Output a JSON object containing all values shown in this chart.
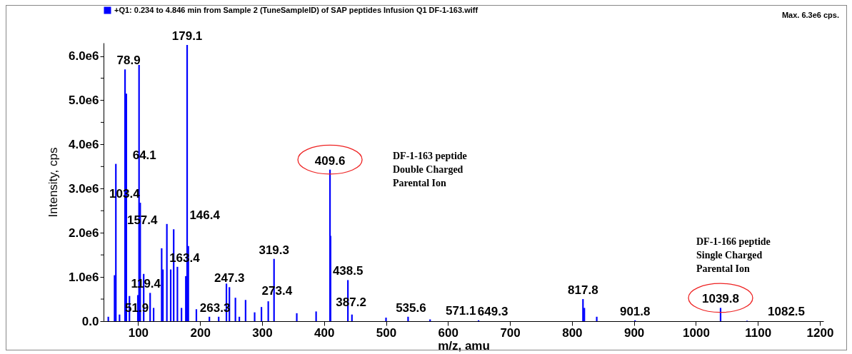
{
  "chart_data": {
    "type": "bar",
    "xlabel": "m/z, amu",
    "ylabel": "Intensity, cps",
    "x": [
      51.9,
      62,
      64.1,
      70,
      78.9,
      81,
      86,
      99.6,
      101.5,
      103.4,
      109,
      119.4,
      125,
      138,
      140,
      146.4,
      152.6,
      157.4,
      163.4,
      170,
      177,
      179.1,
      181,
      194,
      215,
      230,
      242.5,
      247.3,
      257,
      263.3,
      273.4,
      288,
      299,
      310,
      319.3,
      356,
      387.2,
      409.6,
      410.5,
      438.5,
      445,
      500,
      535.6,
      571.1,
      649.3,
      817.8,
      820,
      840,
      901.8,
      1039.8,
      1082.5
    ],
    "series": [
      {
        "name": "+Q1: 0.234 to 4.846 min from Sample 2 (TuneSampleID) of SAP peptides Infusion Q1 DF-1-163.wiff",
        "color": "#0000ff",
        "values": [
          100000,
          1040000,
          3560000,
          150000,
          5700000,
          5150000,
          570000,
          590000,
          5800000,
          2680000,
          1070000,
          640000,
          300000,
          1650000,
          1170000,
          2200000,
          1170000,
          2080000,
          1230000,
          300000,
          1020000,
          6250000,
          1700000,
          270000,
          100000,
          100000,
          850000,
          770000,
          530000,
          100000,
          480000,
          200000,
          320000,
          450000,
          1410000,
          180000,
          220000,
          3430000,
          1930000,
          930000,
          150000,
          80000,
          100000,
          40000,
          20000,
          500000,
          300000,
          100000,
          20000,
          300000,
          10000
        ]
      }
    ],
    "xlim": [
      50,
      1200
    ],
    "xticks": [
      100,
      200,
      300,
      400,
      500,
      600,
      700,
      800,
      900,
      1000,
      1100,
      1200
    ],
    "ylim": [
      0,
      6300000
    ],
    "yticks": [
      {
        "value": 0,
        "label": "0.0"
      },
      {
        "value": 500000,
        "label": null
      },
      {
        "value": 1000000,
        "label": "1.0e6"
      },
      {
        "value": 1500000,
        "label": null
      },
      {
        "value": 2000000,
        "label": "2.0e6"
      },
      {
        "value": 2500000,
        "label": null
      },
      {
        "value": 3000000,
        "label": "3.0e6"
      },
      {
        "value": 3500000,
        "label": null
      },
      {
        "value": 4000000,
        "label": "4.0e6"
      },
      {
        "value": 4500000,
        "label": null
      },
      {
        "value": 5000000,
        "label": "5.0e6"
      },
      {
        "value": 5500000,
        "label": null
      },
      {
        "value": 6000000,
        "label": "6.0e6"
      }
    ],
    "grid": false,
    "legend": "top left",
    "annotations": [
      {
        "text": "51.9",
        "x": 51.9,
        "y": 100000
      },
      {
        "text": "64.1",
        "x": 64.1,
        "y": 3560000
      },
      {
        "text": "78.9",
        "x": 78.9,
        "y": 5700000
      },
      {
        "text": "103.4",
        "x": 103.4,
        "y": 2680000
      },
      {
        "text": "119.4",
        "x": 119.4,
        "y": 640000
      },
      {
        "text": "146.4",
        "x": 146.4,
        "y": 2200000
      },
      {
        "text": "157.4",
        "x": 157.4,
        "y": 2080000
      },
      {
        "text": "163.4",
        "x": 163.4,
        "y": 1230000
      },
      {
        "text": "179.1",
        "x": 179.1,
        "y": 6250000
      },
      {
        "text": "247.3",
        "x": 247.3,
        "y": 770000
      },
      {
        "text": "263.3",
        "x": 263.3,
        "y": 100000
      },
      {
        "text": "273.4",
        "x": 273.4,
        "y": 480000
      },
      {
        "text": "319.3",
        "x": 319.3,
        "y": 1410000
      },
      {
        "text": "387.2",
        "x": 387.2,
        "y": 220000
      },
      {
        "text": "409.6",
        "x": 409.6,
        "y": 3430000
      },
      {
        "text": "438.5",
        "x": 438.5,
        "y": 930000
      },
      {
        "text": "535.6",
        "x": 535.6,
        "y": 100000
      },
      {
        "text": "571.1",
        "x": 571.1,
        "y": 40000
      },
      {
        "text": "649.3",
        "x": 649.3,
        "y": 20000
      },
      {
        "text": "817.8",
        "x": 817.8,
        "y": 500000
      },
      {
        "text": "901.8",
        "x": 901.8,
        "y": 20000
      },
      {
        "text": "1039.8",
        "x": 1039.8,
        "y": 300000
      },
      {
        "text": "1082.5",
        "x": 1082.5,
        "y": 10000
      },
      "DF-1-163 peptide\nDouble Charged\nParental Ion",
      "DF-1-166 peptide\nSingle Charged\nParental Ion",
      "Max. 6.3e6 cps."
    ]
  }
}
